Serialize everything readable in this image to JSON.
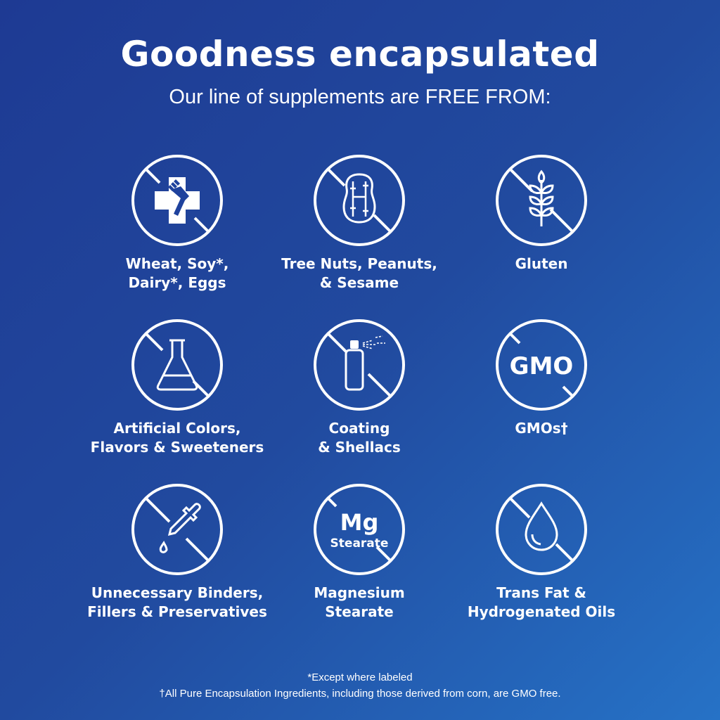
{
  "header": {
    "title": "Goodness encapsulated",
    "subtitle": "Our line of supplements are FREE FROM:"
  },
  "items": [
    {
      "icon": "no-allergens-icon",
      "line1": "Wheat, Soy*,",
      "line2": "Dairy*, Eggs"
    },
    {
      "icon": "no-peanut-icon",
      "line1": "Tree Nuts, Peanuts,",
      "line2": "& Sesame"
    },
    {
      "icon": "no-gluten-icon",
      "line1": "Gluten",
      "line2": ""
    },
    {
      "icon": "no-flask-icon",
      "line1": "Artificial Colors,",
      "line2": "Flavors & Sweeteners"
    },
    {
      "icon": "no-spray-icon",
      "line1": "Coating",
      "line2": "& Shellacs"
    },
    {
      "icon": "no-gmo-icon",
      "line1": "GMOs†",
      "line2": "",
      "badge": "GMO"
    },
    {
      "icon": "no-dropper-icon",
      "line1": "Unnecessary Binders,",
      "line2": "Fillers & Preservatives"
    },
    {
      "icon": "no-mg-stearate-icon",
      "line1": "Magnesium",
      "line2": "Stearate",
      "badge": "Mg",
      "badge_sub": "Stearate"
    },
    {
      "icon": "no-oil-drop-icon",
      "line1": "Trans Fat &",
      "line2": "Hydrogenated Oils"
    }
  ],
  "footer": {
    "note1": "*Except where labeled",
    "note2": "†All Pure Encapsulation Ingredients, including those derived from corn, are GMO free."
  },
  "colors": {
    "bg_start": "#1e3a93",
    "bg_end": "#2672c6",
    "fg": "#ffffff"
  }
}
